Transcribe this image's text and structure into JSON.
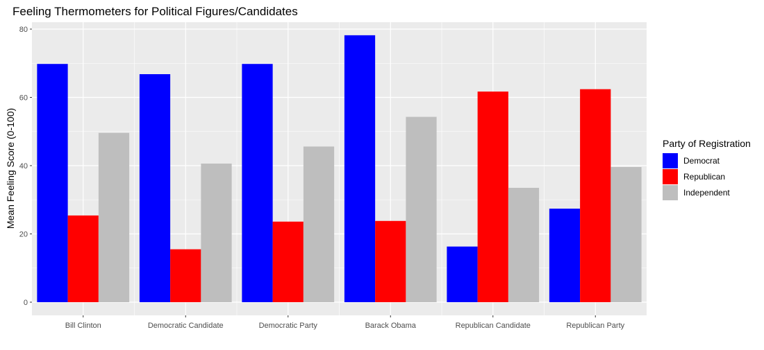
{
  "chart_data": {
    "type": "bar",
    "title": "Feeling Thermometers for Political Figures/Candidates",
    "xlabel": "",
    "ylabel": "Mean Feeling Score (0-100)",
    "ylim": [
      -4,
      82
    ],
    "yticks": [
      0,
      20,
      40,
      60,
      80
    ],
    "grid": true,
    "legend_position": "right",
    "legend_title": "Party of Registration",
    "categories": [
      "Bill Clinton",
      "Democratic Candidate",
      "Democratic Party",
      "Barack Obama",
      "Republican Candidate",
      "Republican Party"
    ],
    "series": [
      {
        "name": "Democrat",
        "color": "#0000ff",
        "values": [
          69.8,
          66.8,
          69.8,
          78.2,
          16.3,
          27.4
        ]
      },
      {
        "name": "Republican",
        "color": "#ff0000",
        "values": [
          25.4,
          15.5,
          23.6,
          23.8,
          61.7,
          62.4
        ]
      },
      {
        "name": "Independent",
        "color": "#bebebe",
        "values": [
          49.6,
          40.6,
          45.6,
          54.3,
          33.5,
          39.6
        ]
      }
    ]
  }
}
